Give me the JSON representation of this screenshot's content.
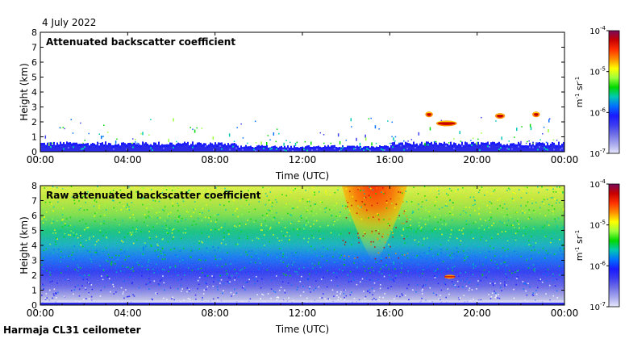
{
  "date_label": "4 July 2022",
  "station_label": "Harmaja CL31 ceilometer",
  "colorbar": {
    "ticks": [
      "10",
      "10",
      "10",
      "10"
    ],
    "exponents": [
      "-4",
      "-5",
      "-6",
      "-7"
    ],
    "unit_base": [
      "m",
      "sr"
    ],
    "unit_exp": [
      "-1",
      "-1"
    ],
    "colors": [
      "#7a0a5a",
      "#c80000",
      "#ff3000",
      "#ff8c00",
      "#ffff00",
      "#9bff3c",
      "#00d800",
      "#00c8b4",
      "#0070ff",
      "#1a1aff",
      "#3c3cf0",
      "#7070e6",
      "#a8a8ee",
      "#e6e6fa"
    ]
  },
  "chart_data": [
    {
      "type": "heatmap",
      "title": "Attenuated backscatter coefficient",
      "xlabel": "Time (UTC)",
      "ylabel": "Height (km)",
      "xlim": [
        0,
        24
      ],
      "ylim": [
        0,
        8
      ],
      "x_ticks": [
        "00:00",
        "04:00",
        "08:00",
        "12:00",
        "16:00",
        "20:00",
        "00:00"
      ],
      "y_ticks": [
        "0",
        "1",
        "2",
        "3",
        "4",
        "5",
        "6",
        "7",
        "8"
      ],
      "color_scale": {
        "min": "1e-7",
        "max": "1e-4",
        "unit": "m-1 sr-1",
        "scale": "log"
      },
      "features": [
        {
          "name": "boundary-layer",
          "x_range": [
            0,
            24
          ],
          "top_km": 0.55
        },
        {
          "name": "cloud-layer-1",
          "x_range": [
            18.2,
            19.0
          ],
          "height_km": 1.9
        },
        {
          "name": "cloud-layer-2",
          "x_range": [
            17.7,
            17.9
          ],
          "height_km": 2.5
        },
        {
          "name": "cloud-layer-3",
          "x_range": [
            20.9,
            21.2
          ],
          "height_km": 2.4
        },
        {
          "name": "cloud-layer-4",
          "x_range": [
            22.6,
            22.8
          ],
          "height_km": 2.5
        }
      ]
    },
    {
      "type": "heatmap",
      "title": "Raw attenuated backscatter coefficient",
      "xlabel": "Time (UTC)",
      "ylabel": "Height (km)",
      "xlim": [
        0,
        24
      ],
      "ylim": [
        0,
        8
      ],
      "x_ticks": [
        "00:00",
        "04:00",
        "08:00",
        "12:00",
        "16:00",
        "20:00",
        "00:00"
      ],
      "y_ticks": [
        "0",
        "1",
        "2",
        "3",
        "4",
        "5",
        "6",
        "7",
        "8"
      ],
      "color_scale": {
        "min": "1e-7",
        "max": "1e-4",
        "unit": "m-1 sr-1",
        "scale": "log"
      },
      "features": [
        {
          "name": "noise-maximum",
          "x_center": 15.3,
          "x_range": [
            13.8,
            16.8
          ],
          "above_km": 3.0
        },
        {
          "name": "cloud-layer-1",
          "x_range": [
            18.5,
            19.0
          ],
          "height_km": 1.9
        }
      ]
    }
  ]
}
